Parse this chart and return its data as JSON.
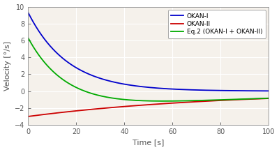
{
  "xlabel": "Time [s]",
  "ylabel": "Velocity [°/s]",
  "xlim": [
    0,
    100
  ],
  "ylim": [
    -4,
    10
  ],
  "yticks": [
    -4,
    -2,
    0,
    2,
    4,
    6,
    8,
    10
  ],
  "xticks": [
    0,
    20,
    40,
    60,
    80,
    100
  ],
  "okan1_A": 9.3,
  "okan1_tau": 16.5,
  "okan2_A": -3.0,
  "okan2_tau": 80.0,
  "colors": {
    "okan1": "#0000cc",
    "okan2": "#cc0000",
    "eq2": "#00aa00"
  },
  "legend_labels": [
    "OKAN-I",
    "OKAN-II",
    "Eq.2 (OKAN-I + OKAN-II)"
  ],
  "linewidth": 1.3,
  "axes_bg": "#f5f1eb",
  "fig_bg": "#ffffff",
  "grid_color": "#ffffff",
  "spine_color": "#999999",
  "tick_color": "#555555"
}
